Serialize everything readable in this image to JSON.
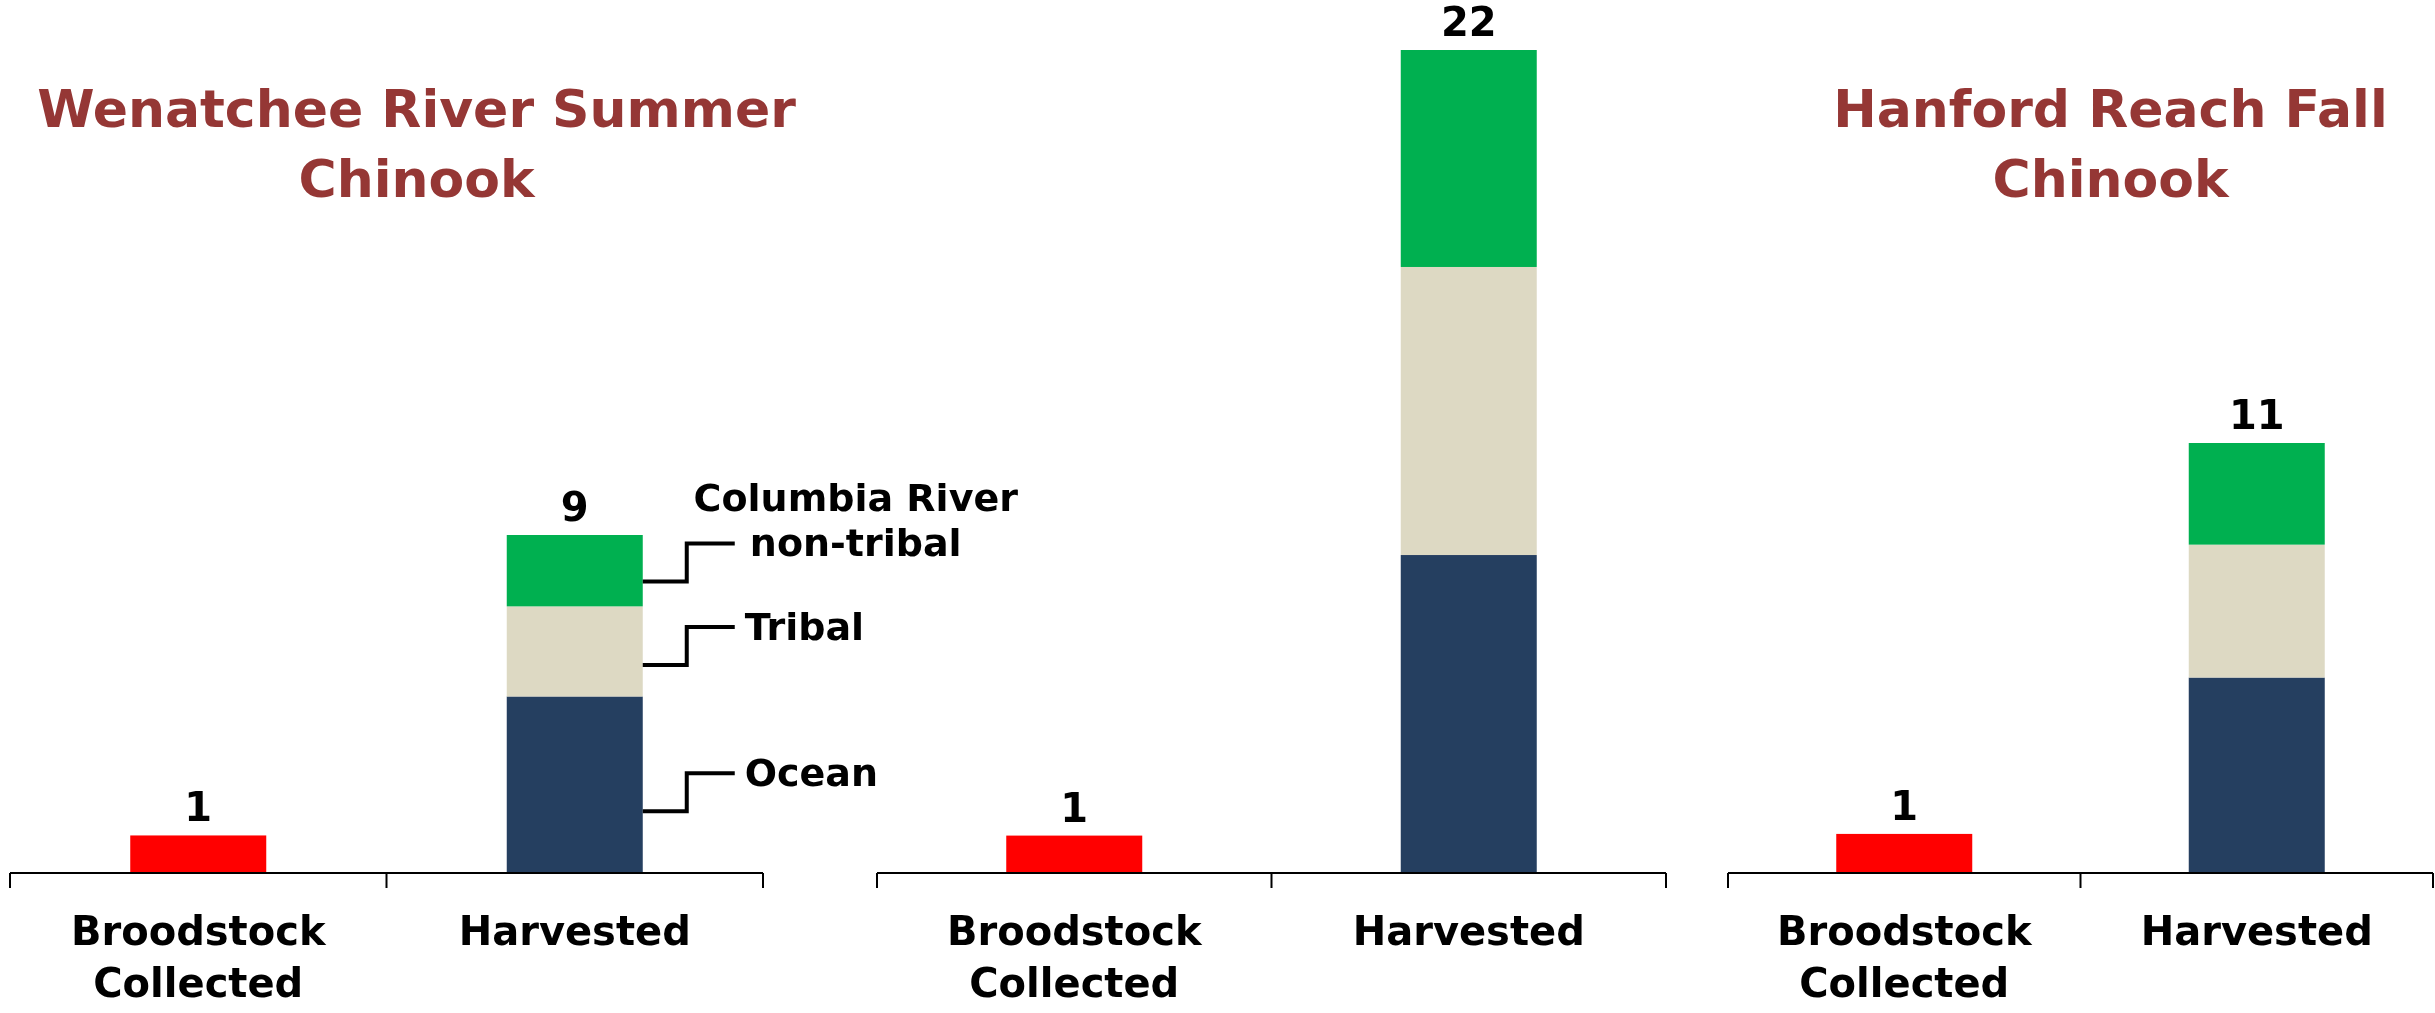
{
  "chart_data": [
    {
      "type": "bar",
      "title": "Wenatchee River Summer Chinook",
      "categories": [
        "Broodstock Collected",
        "Harvested"
      ],
      "stacked": true,
      "totals": [
        null,
        "9"
      ],
      "series": [
        {
          "color": "#ff0000",
          "values": [
            1,
            null
          ],
          "value_labels": [
            "1",
            null
          ]
        },
        {
          "name": "Ocean",
          "color": "#253f60",
          "values": [
            null,
            4.7
          ]
        },
        {
          "name": "Tribal",
          "color": "#ddd9c3",
          "values": [
            null,
            2.4
          ]
        },
        {
          "name": "Columbia River non-tribal",
          "color": "#00b050",
          "values": [
            null,
            1.9
          ]
        }
      ]
    },
    {
      "type": "bar",
      "categories": [
        "Broodstock Collected",
        "Harvested"
      ],
      "stacked": true,
      "totals": [
        null,
        "22"
      ],
      "series": [
        {
          "color": "#ff0000",
          "values": [
            1,
            null
          ],
          "value_labels": [
            "1",
            null
          ]
        },
        {
          "color": "#253f60",
          "values": [
            null,
            8.5
          ]
        },
        {
          "color": "#ddd9c3",
          "values": [
            null,
            7.7
          ]
        },
        {
          "color": "#00b050",
          "values": [
            null,
            5.8
          ]
        }
      ]
    },
    {
      "type": "bar",
      "title": "Hanford Reach Fall Chinook",
      "categories": [
        "Broodstock Collected",
        "Harvested"
      ],
      "stacked": true,
      "totals": [
        null,
        "11"
      ],
      "series": [
        {
          "color": "#ff0000",
          "values": [
            1,
            null
          ],
          "value_labels": [
            "1",
            null
          ]
        },
        {
          "color": "#253f60",
          "values": [
            null,
            5.0
          ]
        },
        {
          "color": "#ddd9c3",
          "values": [
            null,
            3.4
          ]
        },
        {
          "color": "#00b050",
          "values": [
            null,
            2.6
          ]
        }
      ]
    }
  ]
}
